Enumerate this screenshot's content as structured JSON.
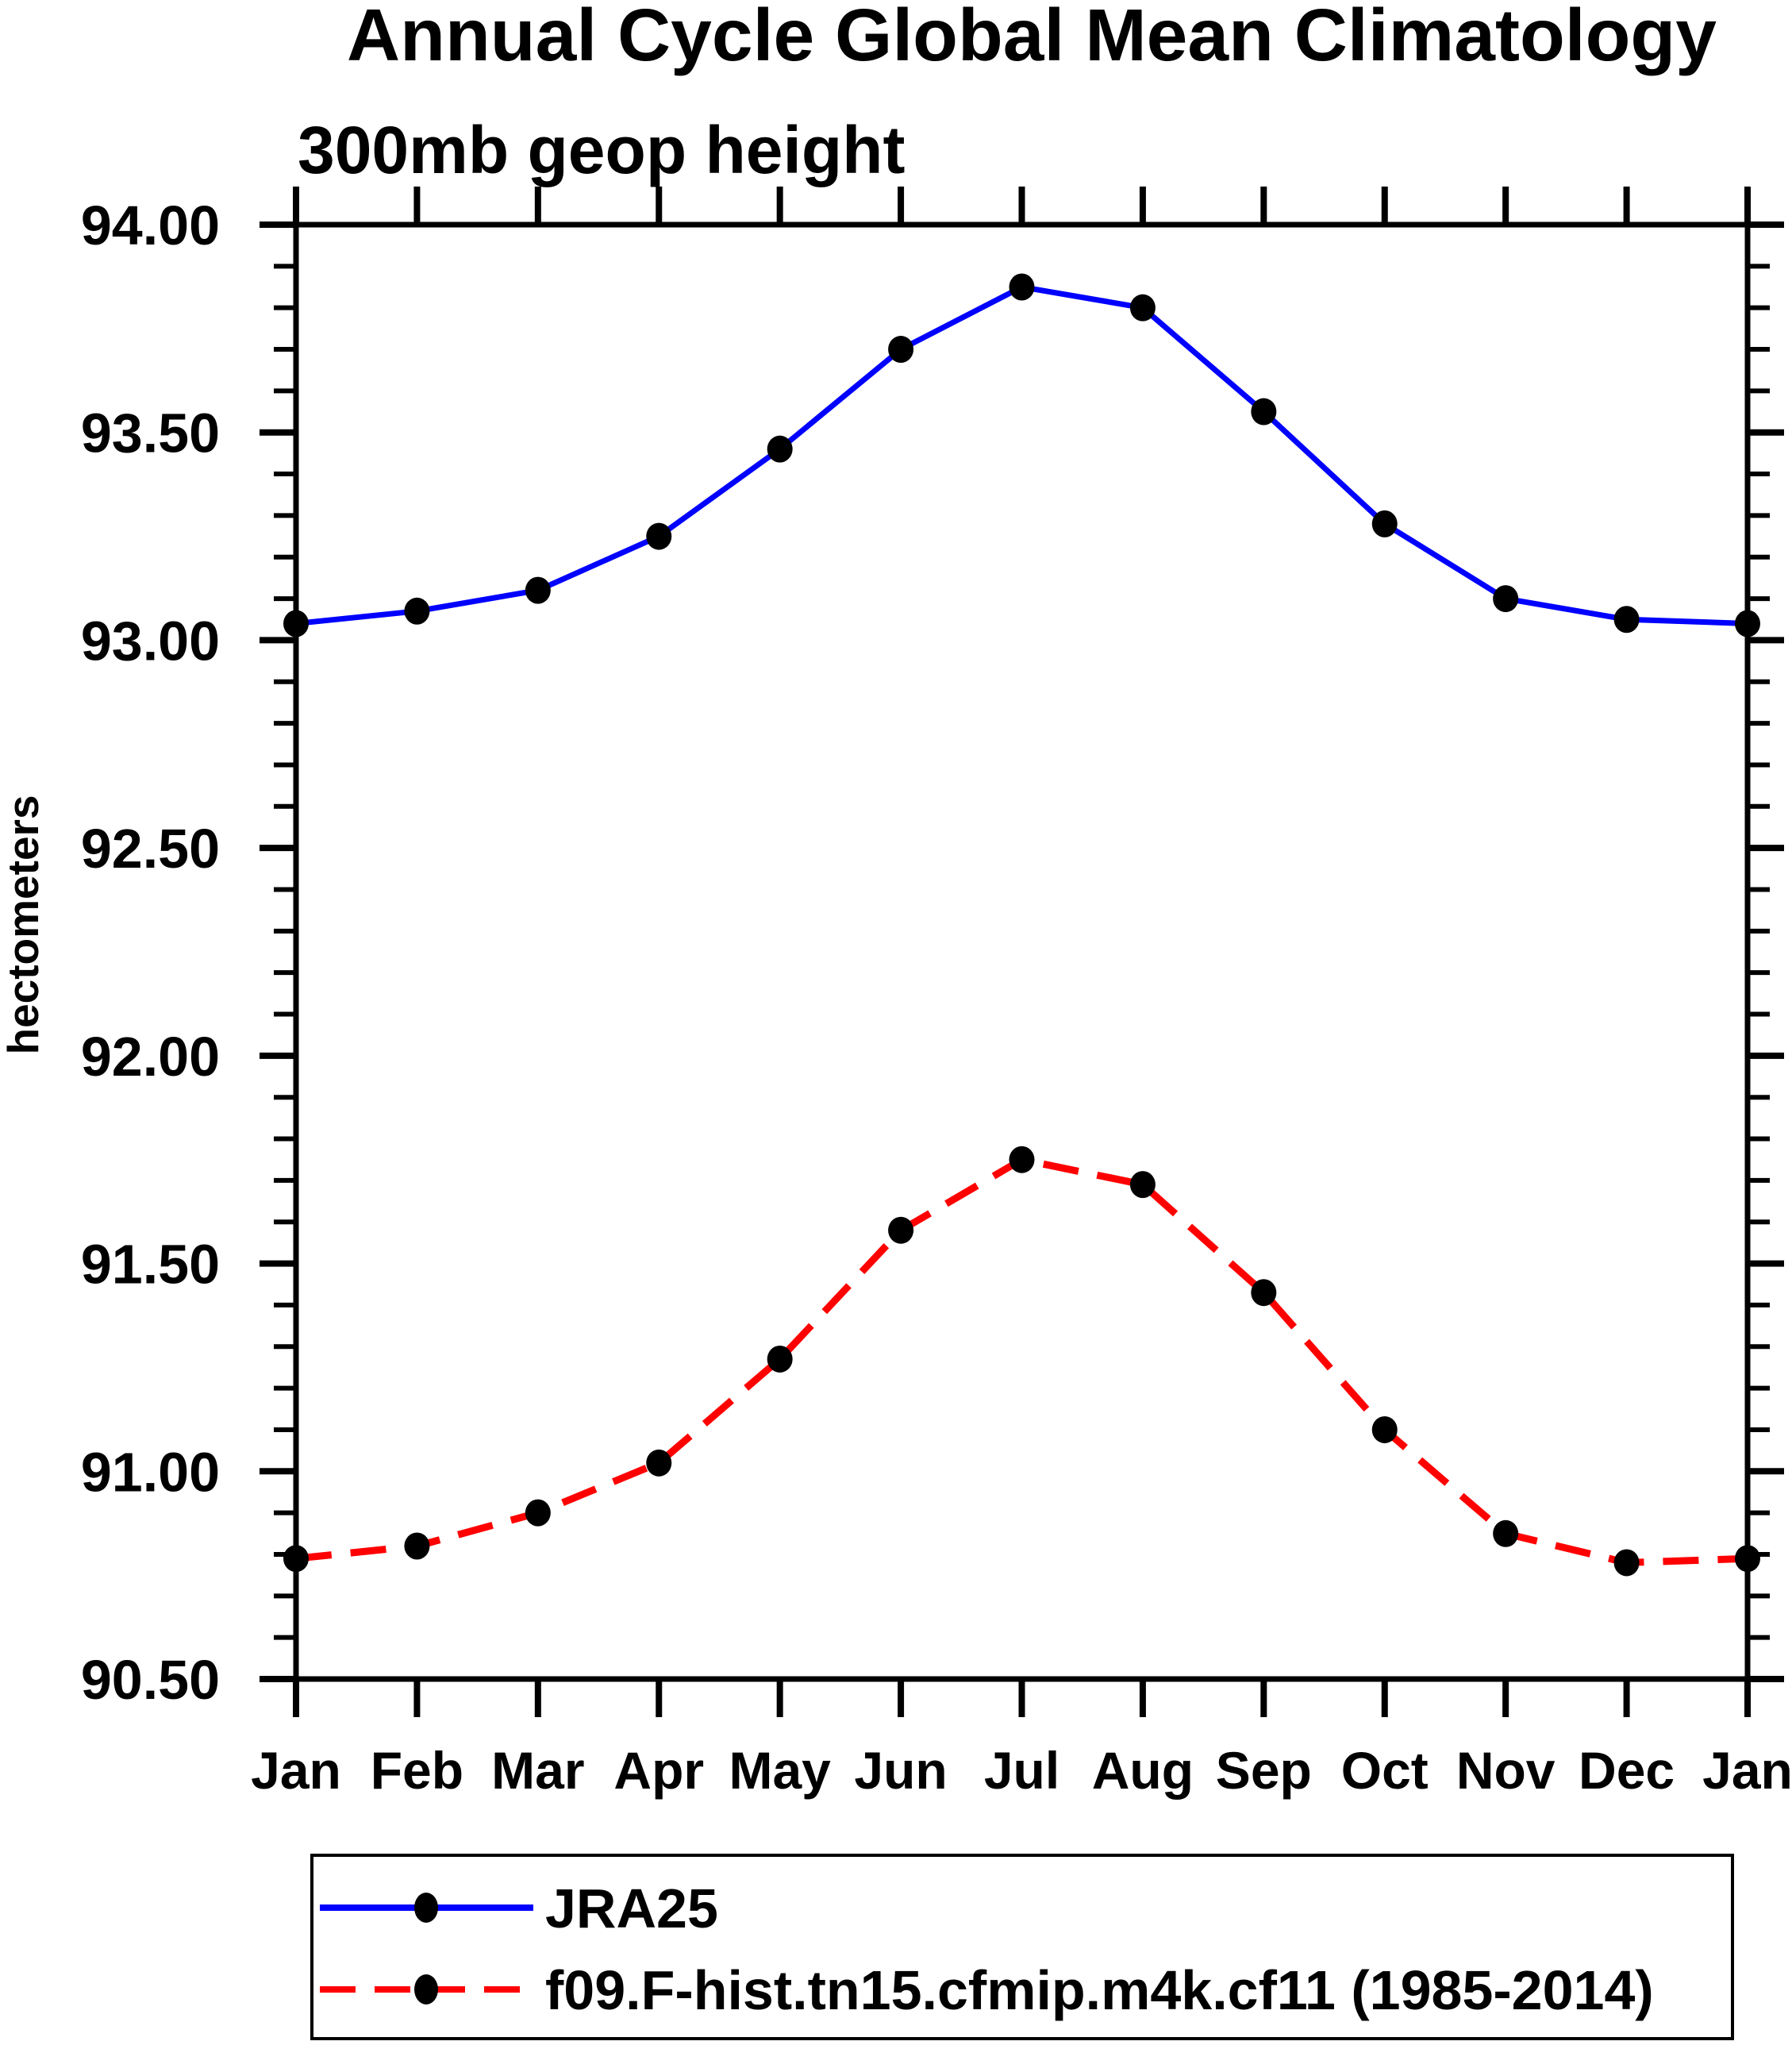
{
  "chart_data": {
    "type": "line",
    "title": "Annual Cycle Global Mean Climatology",
    "subtitle": "300mb geop height",
    "ylabel": "hectometers",
    "categories": [
      "Jan",
      "Feb",
      "Mar",
      "Apr",
      "May",
      "Jun",
      "Jul",
      "Aug",
      "Sep",
      "Oct",
      "Nov",
      "Dec",
      "Jan"
    ],
    "ylim": [
      90.5,
      94.0
    ],
    "ytick_major_step": 0.5,
    "ytick_minor_step": 0.1,
    "ytick_labels": [
      "90.50",
      "91.00",
      "91.50",
      "92.00",
      "92.50",
      "93.00",
      "93.50",
      "94.00"
    ],
    "grid": false,
    "legend_position": "bottom-left-box",
    "marker": "filled-black-dot",
    "marker_color": "#000000",
    "frame_color": "#000000",
    "series": [
      {
        "name": "JRA25",
        "color": "#0000ff",
        "line_style": "solid",
        "values": [
          93.04,
          93.07,
          93.12,
          93.25,
          93.46,
          93.7,
          93.85,
          93.8,
          93.55,
          93.28,
          93.1,
          93.05,
          93.04
        ]
      },
      {
        "name": "f09.F-hist.tn15.cfmip.m4k.cf11 (1985-2014)",
        "color": "#ff0000",
        "line_style": "dashed",
        "values": [
          90.79,
          90.82,
          90.9,
          91.02,
          91.27,
          91.58,
          91.75,
          91.69,
          91.43,
          91.1,
          90.85,
          90.78,
          90.79
        ]
      }
    ]
  }
}
